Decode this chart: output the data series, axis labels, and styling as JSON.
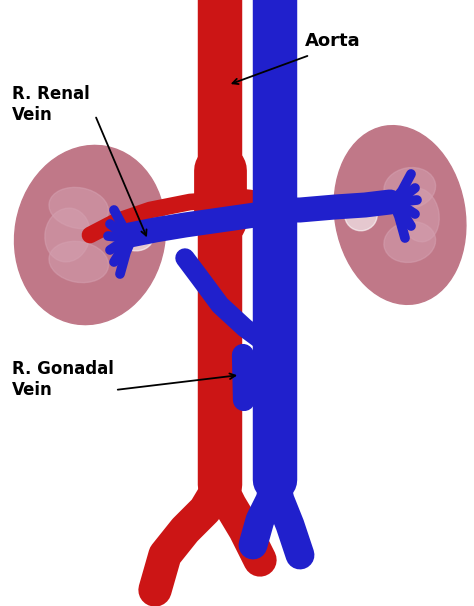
{
  "bg_color": "#ffffff",
  "aorta_color": "#cc1515",
  "vein_color": "#2020cc",
  "kidney_color": "#c07888",
  "kidney_shadow": "#d4a0b0",
  "labels": {
    "r_renal_vein": "R. Renal\nVein",
    "r_gonadal_vein": "R. Gonadal\nVein",
    "aorta": "Aorta"
  },
  "figsize": [
    4.74,
    6.06
  ],
  "dpi": 100
}
